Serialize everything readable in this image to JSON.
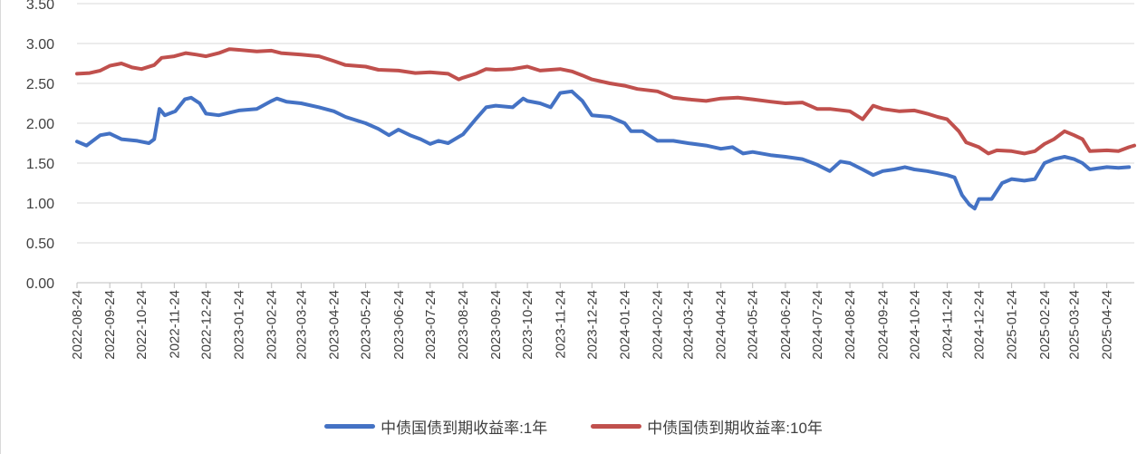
{
  "chart_data": {
    "type": "line",
    "xlabel": "",
    "ylabel": "",
    "ylim": [
      0,
      3.5
    ],
    "yticks": [
      "0.00",
      "0.50",
      "1.00",
      "1.50",
      "2.00",
      "2.50",
      "3.00",
      "3.50"
    ],
    "x_ticks": [
      "2022-08-24",
      "2022-09-24",
      "2022-10-24",
      "2022-11-24",
      "2022-12-24",
      "2023-01-24",
      "2023-02-24",
      "2023-03-24",
      "2023-04-24",
      "2023-05-24",
      "2023-06-24",
      "2023-07-24",
      "2023-08-24",
      "2023-09-24",
      "2023-10-24",
      "2023-11-24",
      "2023-12-24",
      "2024-01-24",
      "2024-02-24",
      "2024-03-24",
      "2024-04-24",
      "2024-05-24",
      "2024-06-24",
      "2024-07-24",
      "2024-08-24",
      "2024-09-24",
      "2024-10-24",
      "2024-11-24",
      "2024-12-24",
      "2025-01-24",
      "2025-02-24",
      "2025-03-24",
      "2025-04-24"
    ],
    "grid": "horizontal",
    "legend_position": "bottom",
    "series": [
      {
        "name": "中债国债到期收益率:1年",
        "color": "#4472c4",
        "points": [
          [
            "2022-08-24",
            1.77
          ],
          [
            "2022-09-02",
            1.72
          ],
          [
            "2022-09-15",
            1.85
          ],
          [
            "2022-09-24",
            1.87
          ],
          [
            "2022-10-05",
            1.8
          ],
          [
            "2022-10-20",
            1.78
          ],
          [
            "2022-10-31",
            1.75
          ],
          [
            "2022-11-05",
            1.8
          ],
          [
            "2022-11-10",
            2.18
          ],
          [
            "2022-11-15",
            2.1
          ],
          [
            "2022-11-25",
            2.15
          ],
          [
            "2022-12-04",
            2.3
          ],
          [
            "2022-12-10",
            2.32
          ],
          [
            "2022-12-18",
            2.25
          ],
          [
            "2022-12-24",
            2.12
          ],
          [
            "2023-01-05",
            2.1
          ],
          [
            "2023-01-24",
            2.16
          ],
          [
            "2023-02-10",
            2.18
          ],
          [
            "2023-02-24",
            2.28
          ],
          [
            "2023-03-01",
            2.31
          ],
          [
            "2023-03-10",
            2.27
          ],
          [
            "2023-03-24",
            2.25
          ],
          [
            "2023-04-10",
            2.2
          ],
          [
            "2023-04-24",
            2.15
          ],
          [
            "2023-05-05",
            2.08
          ],
          [
            "2023-05-24",
            2.0
          ],
          [
            "2023-06-05",
            1.93
          ],
          [
            "2023-06-15",
            1.85
          ],
          [
            "2023-06-24",
            1.92
          ],
          [
            "2023-07-05",
            1.85
          ],
          [
            "2023-07-15",
            1.8
          ],
          [
            "2023-07-24",
            1.74
          ],
          [
            "2023-08-01",
            1.78
          ],
          [
            "2023-08-10",
            1.75
          ],
          [
            "2023-08-24",
            1.86
          ],
          [
            "2023-09-05",
            2.05
          ],
          [
            "2023-09-15",
            2.2
          ],
          [
            "2023-09-24",
            2.22
          ],
          [
            "2023-10-10",
            2.2
          ],
          [
            "2023-10-20",
            2.31
          ],
          [
            "2023-10-24",
            2.28
          ],
          [
            "2023-11-05",
            2.25
          ],
          [
            "2023-11-15",
            2.2
          ],
          [
            "2023-11-24",
            2.38
          ],
          [
            "2023-12-05",
            2.4
          ],
          [
            "2023-12-15",
            2.28
          ],
          [
            "2023-12-24",
            2.1
          ],
          [
            "2024-01-10",
            2.08
          ],
          [
            "2024-01-24",
            2.0
          ],
          [
            "2024-01-30",
            1.9
          ],
          [
            "2024-02-10",
            1.9
          ],
          [
            "2024-02-24",
            1.78
          ],
          [
            "2024-03-10",
            1.78
          ],
          [
            "2024-03-24",
            1.75
          ],
          [
            "2024-04-10",
            1.72
          ],
          [
            "2024-04-24",
            1.68
          ],
          [
            "2024-05-05",
            1.7
          ],
          [
            "2024-05-15",
            1.62
          ],
          [
            "2024-05-24",
            1.64
          ],
          [
            "2024-06-10",
            1.6
          ],
          [
            "2024-06-24",
            1.58
          ],
          [
            "2024-07-10",
            1.55
          ],
          [
            "2024-07-24",
            1.48
          ],
          [
            "2024-08-05",
            1.4
          ],
          [
            "2024-08-15",
            1.52
          ],
          [
            "2024-08-24",
            1.5
          ],
          [
            "2024-09-05",
            1.42
          ],
          [
            "2024-09-15",
            1.35
          ],
          [
            "2024-09-24",
            1.4
          ],
          [
            "2024-10-05",
            1.42
          ],
          [
            "2024-10-15",
            1.45
          ],
          [
            "2024-10-24",
            1.42
          ],
          [
            "2024-11-05",
            1.4
          ],
          [
            "2024-11-24",
            1.35
          ],
          [
            "2024-12-01",
            1.32
          ],
          [
            "2024-12-08",
            1.1
          ],
          [
            "2024-12-15",
            0.98
          ],
          [
            "2024-12-20",
            0.93
          ],
          [
            "2024-12-24",
            1.05
          ],
          [
            "2025-01-05",
            1.05
          ],
          [
            "2025-01-15",
            1.25
          ],
          [
            "2025-01-24",
            1.3
          ],
          [
            "2025-02-05",
            1.28
          ],
          [
            "2025-02-15",
            1.3
          ],
          [
            "2025-02-24",
            1.5
          ],
          [
            "2025-03-05",
            1.55
          ],
          [
            "2025-03-15",
            1.58
          ],
          [
            "2025-03-24",
            1.55
          ],
          [
            "2025-04-01",
            1.5
          ],
          [
            "2025-04-08",
            1.42
          ],
          [
            "2025-04-24",
            1.45
          ],
          [
            "2025-05-05",
            1.44
          ],
          [
            "2025-05-15",
            1.45
          ]
        ]
      },
      {
        "name": "中债国债到期收益率:10年",
        "color": "#c0504d",
        "points": [
          [
            "2022-08-24",
            2.62
          ],
          [
            "2022-09-05",
            2.63
          ],
          [
            "2022-09-15",
            2.66
          ],
          [
            "2022-09-24",
            2.72
          ],
          [
            "2022-10-05",
            2.75
          ],
          [
            "2022-10-15",
            2.7
          ],
          [
            "2022-10-24",
            2.68
          ],
          [
            "2022-11-05",
            2.73
          ],
          [
            "2022-11-12",
            2.82
          ],
          [
            "2022-11-24",
            2.84
          ],
          [
            "2022-12-05",
            2.88
          ],
          [
            "2022-12-15",
            2.86
          ],
          [
            "2022-12-24",
            2.84
          ],
          [
            "2023-01-05",
            2.88
          ],
          [
            "2023-01-15",
            2.93
          ],
          [
            "2023-01-24",
            2.92
          ],
          [
            "2023-02-10",
            2.9
          ],
          [
            "2023-02-24",
            2.91
          ],
          [
            "2023-03-05",
            2.88
          ],
          [
            "2023-03-24",
            2.86
          ],
          [
            "2023-04-10",
            2.84
          ],
          [
            "2023-04-24",
            2.78
          ],
          [
            "2023-05-05",
            2.73
          ],
          [
            "2023-05-24",
            2.71
          ],
          [
            "2023-06-05",
            2.67
          ],
          [
            "2023-06-24",
            2.66
          ],
          [
            "2023-07-10",
            2.63
          ],
          [
            "2023-07-24",
            2.64
          ],
          [
            "2023-08-10",
            2.62
          ],
          [
            "2023-08-20",
            2.55
          ],
          [
            "2023-08-24",
            2.57
          ],
          [
            "2023-09-05",
            2.62
          ],
          [
            "2023-09-15",
            2.68
          ],
          [
            "2023-09-24",
            2.67
          ],
          [
            "2023-10-10",
            2.68
          ],
          [
            "2023-10-24",
            2.71
          ],
          [
            "2023-11-05",
            2.66
          ],
          [
            "2023-11-24",
            2.68
          ],
          [
            "2023-12-05",
            2.65
          ],
          [
            "2023-12-15",
            2.6
          ],
          [
            "2023-12-24",
            2.55
          ],
          [
            "2024-01-10",
            2.5
          ],
          [
            "2024-01-24",
            2.47
          ],
          [
            "2024-02-05",
            2.43
          ],
          [
            "2024-02-24",
            2.4
          ],
          [
            "2024-03-10",
            2.32
          ],
          [
            "2024-03-24",
            2.3
          ],
          [
            "2024-04-10",
            2.28
          ],
          [
            "2024-04-24",
            2.31
          ],
          [
            "2024-05-10",
            2.32
          ],
          [
            "2024-05-24",
            2.3
          ],
          [
            "2024-06-10",
            2.27
          ],
          [
            "2024-06-24",
            2.25
          ],
          [
            "2024-07-10",
            2.26
          ],
          [
            "2024-07-24",
            2.18
          ],
          [
            "2024-08-05",
            2.18
          ],
          [
            "2024-08-24",
            2.15
          ],
          [
            "2024-09-05",
            2.05
          ],
          [
            "2024-09-15",
            2.22
          ],
          [
            "2024-09-24",
            2.18
          ],
          [
            "2024-10-10",
            2.15
          ],
          [
            "2024-10-24",
            2.16
          ],
          [
            "2024-11-05",
            2.12
          ],
          [
            "2024-11-15",
            2.08
          ],
          [
            "2024-11-24",
            2.05
          ],
          [
            "2024-12-05",
            1.9
          ],
          [
            "2024-12-12",
            1.76
          ],
          [
            "2024-12-24",
            1.7
          ],
          [
            "2025-01-02",
            1.62
          ],
          [
            "2025-01-10",
            1.66
          ],
          [
            "2025-01-24",
            1.65
          ],
          [
            "2025-02-05",
            1.62
          ],
          [
            "2025-02-15",
            1.65
          ],
          [
            "2025-02-24",
            1.74
          ],
          [
            "2025-03-05",
            1.8
          ],
          [
            "2025-03-15",
            1.9
          ],
          [
            "2025-03-24",
            1.85
          ],
          [
            "2025-04-01",
            1.8
          ],
          [
            "2025-04-08",
            1.65
          ],
          [
            "2025-04-24",
            1.66
          ],
          [
            "2025-05-05",
            1.65
          ],
          [
            "2025-05-15",
            1.7
          ],
          [
            "2025-05-20",
            1.72
          ]
        ]
      }
    ]
  }
}
